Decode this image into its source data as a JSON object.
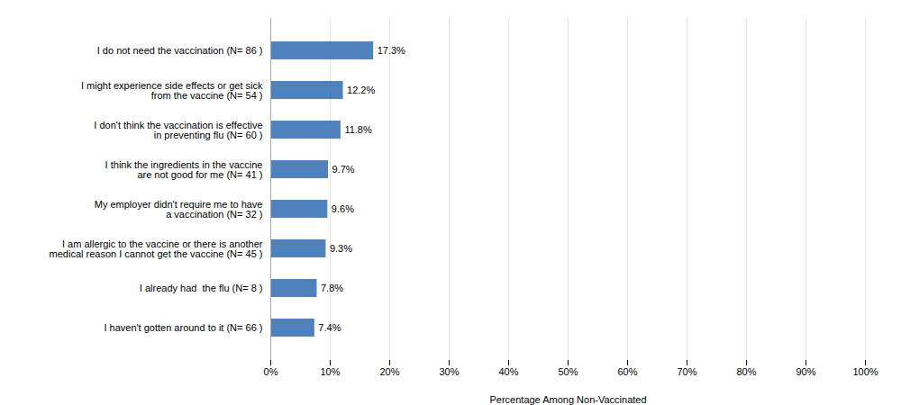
{
  "chart_data": {
    "type": "bar",
    "orientation": "horizontal",
    "categories": [
      "I haven't gotten around to it (N= 66 )",
      "I already had  the flu (N= 8 )",
      "I am allergic to the vaccine or there is another\nmedical reason I cannot get the vaccine (N= 45 )",
      "My employer didn't require me to have\na vaccination (N= 32 )",
      "I think the ingredients in the vaccine\nare not good for me (N= 41 )",
      "I don't think the vaccination is effective\nin preventing flu (N= 60 )",
      "I might experience side effects or get sick\nfrom the vaccine (N= 54 )",
      "I do not need the vaccination (N= 86 )"
    ],
    "values": [
      7.4,
      7.8,
      9.3,
      9.6,
      9.7,
      11.8,
      12.2,
      17.3
    ],
    "value_labels": [
      "7.4%",
      "7.8%",
      "9.3%",
      "9.6%",
      "9.7%",
      "11.8%",
      "12.2%",
      "17.3%"
    ],
    "data_labels": true,
    "color": "#4F81BD",
    "xlabel": "Percentage Among Non-Vaccinated",
    "xlim": [
      0,
      100
    ],
    "xticks": [
      {
        "value": 0,
        "label": "0%"
      },
      {
        "value": 10,
        "label": "10%"
      },
      {
        "value": 20,
        "label": "20%"
      },
      {
        "value": 30,
        "label": "30%"
      },
      {
        "value": 40,
        "label": "40%"
      },
      {
        "value": 50,
        "label": "50%"
      },
      {
        "value": 60,
        "label": "60%"
      },
      {
        "value": 70,
        "label": "70%"
      },
      {
        "value": 80,
        "label": "80%"
      },
      {
        "value": 90,
        "label": "90%"
      },
      {
        "value": 100,
        "label": "100%"
      }
    ],
    "grid": true
  }
}
